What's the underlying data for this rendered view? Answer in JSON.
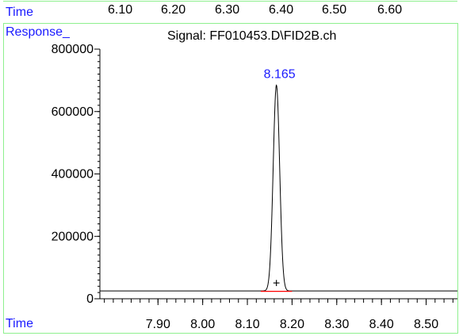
{
  "header": {
    "time_label": "Time",
    "time_ticks": [
      "6.10",
      "6.20",
      "6.30",
      "6.40",
      "6.50",
      "6.60"
    ]
  },
  "response_label": "Response_",
  "footer_time_label": "Time",
  "chart_data": {
    "type": "line",
    "title": "Signal: FF010453.D\\FID2B.ch",
    "xlabel": "Time",
    "ylabel": "Response_",
    "xlim": [
      7.77,
      8.57
    ],
    "ylim": [
      0,
      800000
    ],
    "x_ticks": [
      7.9,
      8.0,
      8.1,
      8.2,
      8.3,
      8.4,
      8.5
    ],
    "x_tick_labels": [
      "7.90",
      "8.00",
      "8.10",
      "8.20",
      "8.30",
      "8.40",
      "8.50"
    ],
    "x_minor_step": 0.02,
    "y_ticks": [
      0,
      200000,
      400000,
      600000,
      800000
    ],
    "y_tick_labels": [
      "0",
      "200000",
      "400000",
      "600000",
      "800000"
    ],
    "y_minor_step": 20000,
    "baseline": 25000,
    "series": [
      {
        "peak_x": 8.165,
        "peak_y": 685000,
        "peak_width_sigma": 0.0072,
        "color": "#000000"
      }
    ],
    "peak_label": "8.165",
    "peak_label_color": "#1a1aff",
    "integration_baseline": {
      "x": [
        8.13,
        8.2
      ],
      "color": "#ff0000"
    },
    "peak_marker": {
      "symbol": "+",
      "x": 8.165,
      "y": 50000
    }
  }
}
